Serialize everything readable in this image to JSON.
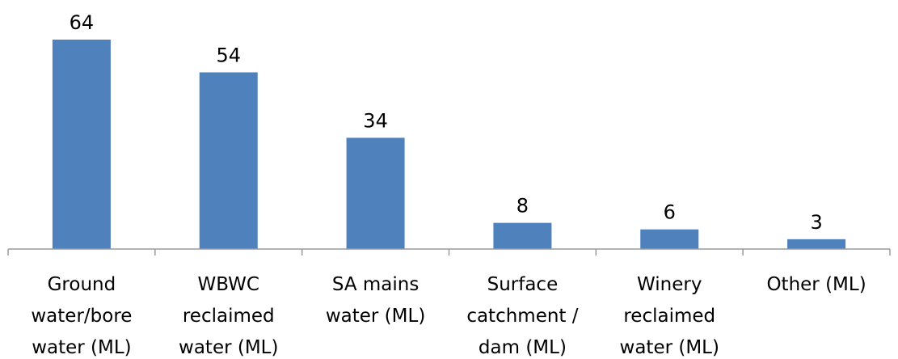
{
  "chart_data": {
    "type": "bar",
    "title": "",
    "xlabel": "",
    "ylabel": "",
    "ylim": [
      0,
      64
    ],
    "grid": false,
    "legend": "none",
    "bar_color": "#4f81bd",
    "categories": [
      [
        "Ground",
        "water/bore",
        "water (ML)"
      ],
      [
        "WBWC",
        "reclaimed",
        "water (ML)"
      ],
      [
        "SA mains",
        "water (ML)"
      ],
      [
        "Surface",
        "catchment /",
        "dam (ML)"
      ],
      [
        "Winery",
        "reclaimed",
        "water (ML)"
      ],
      [
        "Other (ML)"
      ]
    ],
    "values": [
      64,
      54,
      34,
      8,
      6,
      3
    ]
  }
}
